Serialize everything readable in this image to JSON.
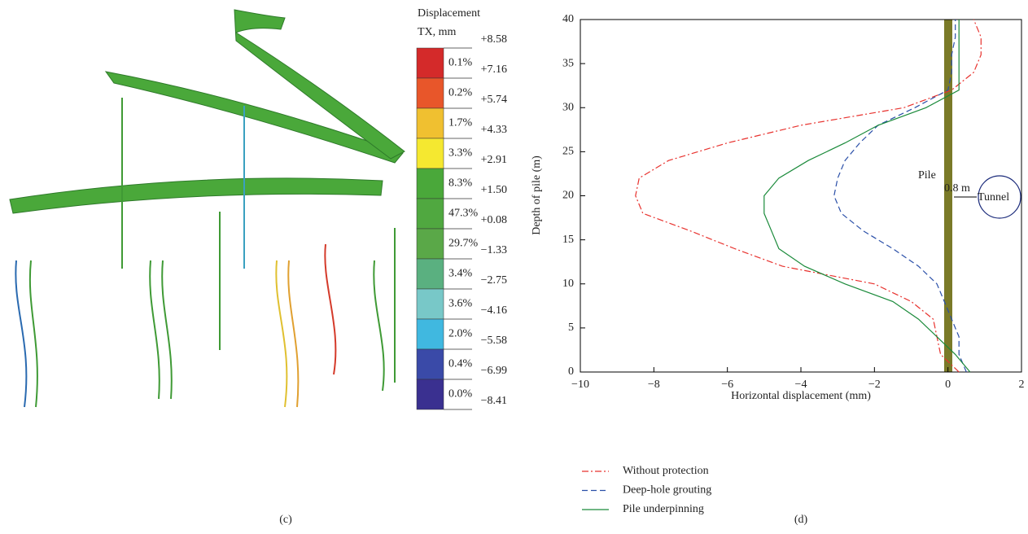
{
  "panel_c": {
    "legend_title": [
      "Displacement",
      "TX, mm"
    ],
    "bounds": [
      "+8.58",
      "+7.16",
      "+5.74",
      "+4.33",
      "+2.91",
      "+1.50",
      "+0.08",
      "−1.33",
      "−2.75",
      "−4.16",
      "−5.58",
      "−6.99",
      "−8.41"
    ],
    "bands": [
      {
        "label": "0.1%",
        "color": "#d42a2a"
      },
      {
        "label": "0.2%",
        "color": "#e8562a"
      },
      {
        "label": "1.7%",
        "color": "#f0c030"
      },
      {
        "label": "3.3%",
        "color": "#f5e830"
      },
      {
        "label": "8.3%",
        "color": "#4aa83a"
      },
      {
        "label": "47.3%",
        "color": "#50a840"
      },
      {
        "label": "29.7%",
        "color": "#5aa848"
      },
      {
        "label": "3.4%",
        "color": "#5ab080"
      },
      {
        "label": "3.6%",
        "color": "#78c8c8"
      },
      {
        "label": "2.0%",
        "color": "#40b8e0"
      },
      {
        "label": "0.4%",
        "color": "#3a4aa8"
      },
      {
        "label": "0.0%",
        "color": "#3a3090"
      }
    ]
  },
  "captions": [
    "(c)",
    "(d)"
  ],
  "chart_data": {
    "type": "line",
    "orientation": "horizontal",
    "xlabel": "Horizontal displacement (mm)",
    "ylabel": "Depth of pile (m)",
    "annotations": [
      "Pile",
      "0.8 m",
      "Tunnel"
    ],
    "y": [
      0,
      2,
      4,
      6,
      8,
      10,
      12,
      14,
      16,
      18,
      20,
      22,
      24,
      26,
      28,
      30,
      32,
      34,
      36,
      38,
      40
    ],
    "series": [
      {
        "name": "Without protection",
        "color": "#e8322e",
        "style": "dashdot",
        "values": [
          0.3,
          -0.2,
          -0.3,
          -0.4,
          -1.0,
          -2.0,
          -4.5,
          -5.8,
          -7.0,
          -8.3,
          -8.5,
          -8.4,
          -7.6,
          -6.0,
          -4.0,
          -1.2,
          0.1,
          0.7,
          0.9,
          0.9,
          0.7
        ]
      },
      {
        "name": "Deep-hole grouting",
        "color": "#2a4fa8",
        "style": "dashed",
        "values": [
          0.5,
          0.3,
          0.3,
          0.1,
          -0.1,
          -0.3,
          -0.8,
          -1.5,
          -2.3,
          -2.9,
          -3.1,
          -3.0,
          -2.8,
          -2.4,
          -1.9,
          -0.9,
          0.0,
          0.1,
          0.1,
          0.2,
          0.2
        ]
      },
      {
        "name": "Pile underpinning",
        "color": "#1a8a3a",
        "style": "solid",
        "values": [
          0.6,
          0.2,
          -0.3,
          -0.8,
          -1.5,
          -2.8,
          -3.9,
          -4.6,
          -4.8,
          -5.0,
          -5.0,
          -4.6,
          -3.8,
          -2.8,
          -1.9,
          -0.6,
          0.3,
          0.3,
          0.3,
          0.3,
          0.3
        ]
      }
    ],
    "xlim": [
      -10,
      2
    ],
    "ylim": [
      0,
      40
    ],
    "xticks": [
      {
        "value": -10,
        "label": "−10"
      },
      {
        "value": -8,
        "label": "−8"
      },
      {
        "value": -6,
        "label": "−6"
      },
      {
        "value": -4,
        "label": "−4"
      },
      {
        "value": -2,
        "label": "−2"
      },
      0,
      2
    ],
    "yticks": [
      0,
      5,
      10,
      15,
      20,
      25,
      30,
      35,
      40
    ]
  }
}
